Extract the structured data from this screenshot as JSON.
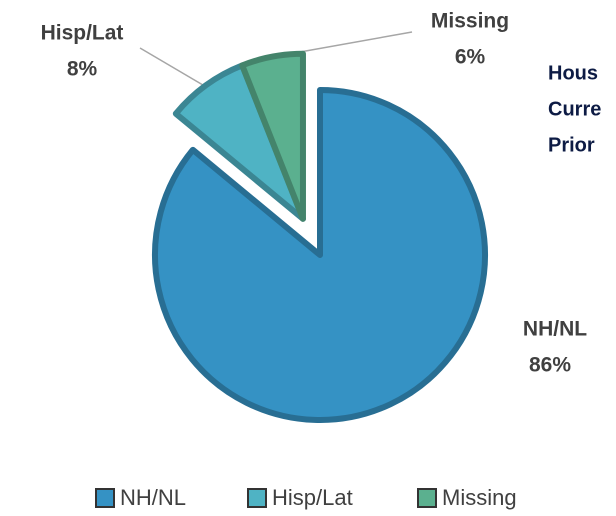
{
  "chart_data": {
    "type": "pie",
    "categories": [
      "NH/NL",
      "Hisp/Lat",
      "Missing"
    ],
    "values": [
      86,
      8,
      6
    ],
    "value_labels": [
      "86%",
      "8%",
      "6%"
    ],
    "colors": [
      "#3592c4",
      "#4fb3c4",
      "#5bb08f"
    ],
    "legend": "bottom",
    "annotations": [
      "Hous",
      "Curre",
      "Prior"
    ]
  }
}
